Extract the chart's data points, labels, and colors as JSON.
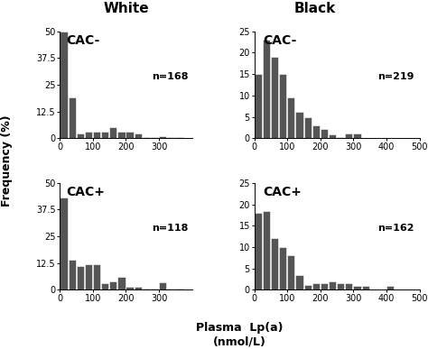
{
  "bar_color": "#555555",
  "bar_edgecolor": "#555555",
  "background_color": "#ffffff",
  "col_titles": [
    "White",
    "Black"
  ],
  "subplots": [
    {
      "label": "CAC-",
      "n_label": "n=168",
      "ylim": [
        0,
        50
      ],
      "yticks": [
        0,
        12.5,
        25,
        37.5,
        50
      ],
      "ytick_labels": [
        "0",
        "12.5",
        "25",
        "37.5",
        "50"
      ],
      "xlim": [
        0,
        400
      ],
      "xticks": [
        0,
        100,
        200,
        300
      ],
      "bin_width": 25,
      "bin_starts": [
        0,
        25,
        50,
        75,
        100,
        125,
        150,
        175,
        200,
        225,
        250,
        275,
        300,
        325,
        350
      ],
      "heights": [
        50,
        19,
        2,
        3,
        3,
        3,
        5,
        3,
        3,
        2,
        0.5,
        0.5,
        1,
        0.5,
        0.5
      ]
    },
    {
      "label": "CAC-",
      "n_label": "n=219",
      "ylim": [
        0,
        25
      ],
      "yticks": [
        0,
        5,
        10,
        15,
        20,
        25
      ],
      "ytick_labels": [
        "0",
        "5",
        "10",
        "15",
        "20",
        "25"
      ],
      "xlim": [
        0,
        500
      ],
      "xticks": [
        0,
        100,
        200,
        300,
        400,
        500
      ],
      "bin_width": 25,
      "bin_starts": [
        0,
        25,
        50,
        75,
        100,
        125,
        150,
        175,
        200,
        225,
        250,
        275,
        300,
        325,
        350,
        375,
        400,
        425
      ],
      "heights": [
        15,
        23,
        19,
        15,
        9.5,
        6.2,
        5.0,
        3.0,
        2.2,
        0.8,
        0.3,
        1.0,
        1.0,
        0,
        0,
        0,
        0,
        0
      ]
    },
    {
      "label": "CAC+",
      "n_label": "n=118",
      "ylim": [
        0,
        50
      ],
      "yticks": [
        0,
        12.5,
        25,
        37.5,
        50
      ],
      "ytick_labels": [
        "0",
        "12.5",
        "25",
        "37.5",
        "50"
      ],
      "xlim": [
        0,
        400
      ],
      "xticks": [
        0,
        100,
        200,
        300
      ],
      "bin_width": 25,
      "bin_starts": [
        0,
        25,
        50,
        75,
        100,
        125,
        150,
        175,
        200,
        225,
        250,
        275,
        300,
        325,
        350
      ],
      "heights": [
        43,
        14,
        11,
        12,
        12,
        3,
        4,
        6,
        1.5,
        1.5,
        0.5,
        0.5,
        3.5,
        0.5,
        0.5
      ]
    },
    {
      "label": "CAC+",
      "n_label": "n=162",
      "ylim": [
        0,
        25
      ],
      "yticks": [
        0,
        5,
        10,
        15,
        20,
        25
      ],
      "ytick_labels": [
        "0",
        "5",
        "10",
        "15",
        "20",
        "25"
      ],
      "xlim": [
        0,
        500
      ],
      "xticks": [
        0,
        100,
        200,
        300,
        400,
        500
      ],
      "bin_width": 25,
      "bin_starts": [
        0,
        25,
        50,
        75,
        100,
        125,
        150,
        175,
        200,
        225,
        250,
        275,
        300,
        325,
        350,
        375,
        400,
        425
      ],
      "heights": [
        18,
        18.5,
        12,
        10,
        8,
        3.5,
        1,
        1.5,
        1.5,
        2.0,
        1.5,
        1.5,
        0.8,
        0.8,
        0,
        0,
        0.8,
        0
      ]
    }
  ],
  "xlabel_line1": "Plasma  Lp(a)",
  "xlabel_line2": "(nmol/L)",
  "ylabel": "Frequency (%)",
  "title_fontsize": 11,
  "label_fontsize": 9,
  "tick_fontsize": 7,
  "n_fontsize": 8,
  "cac_fontsize": 10
}
